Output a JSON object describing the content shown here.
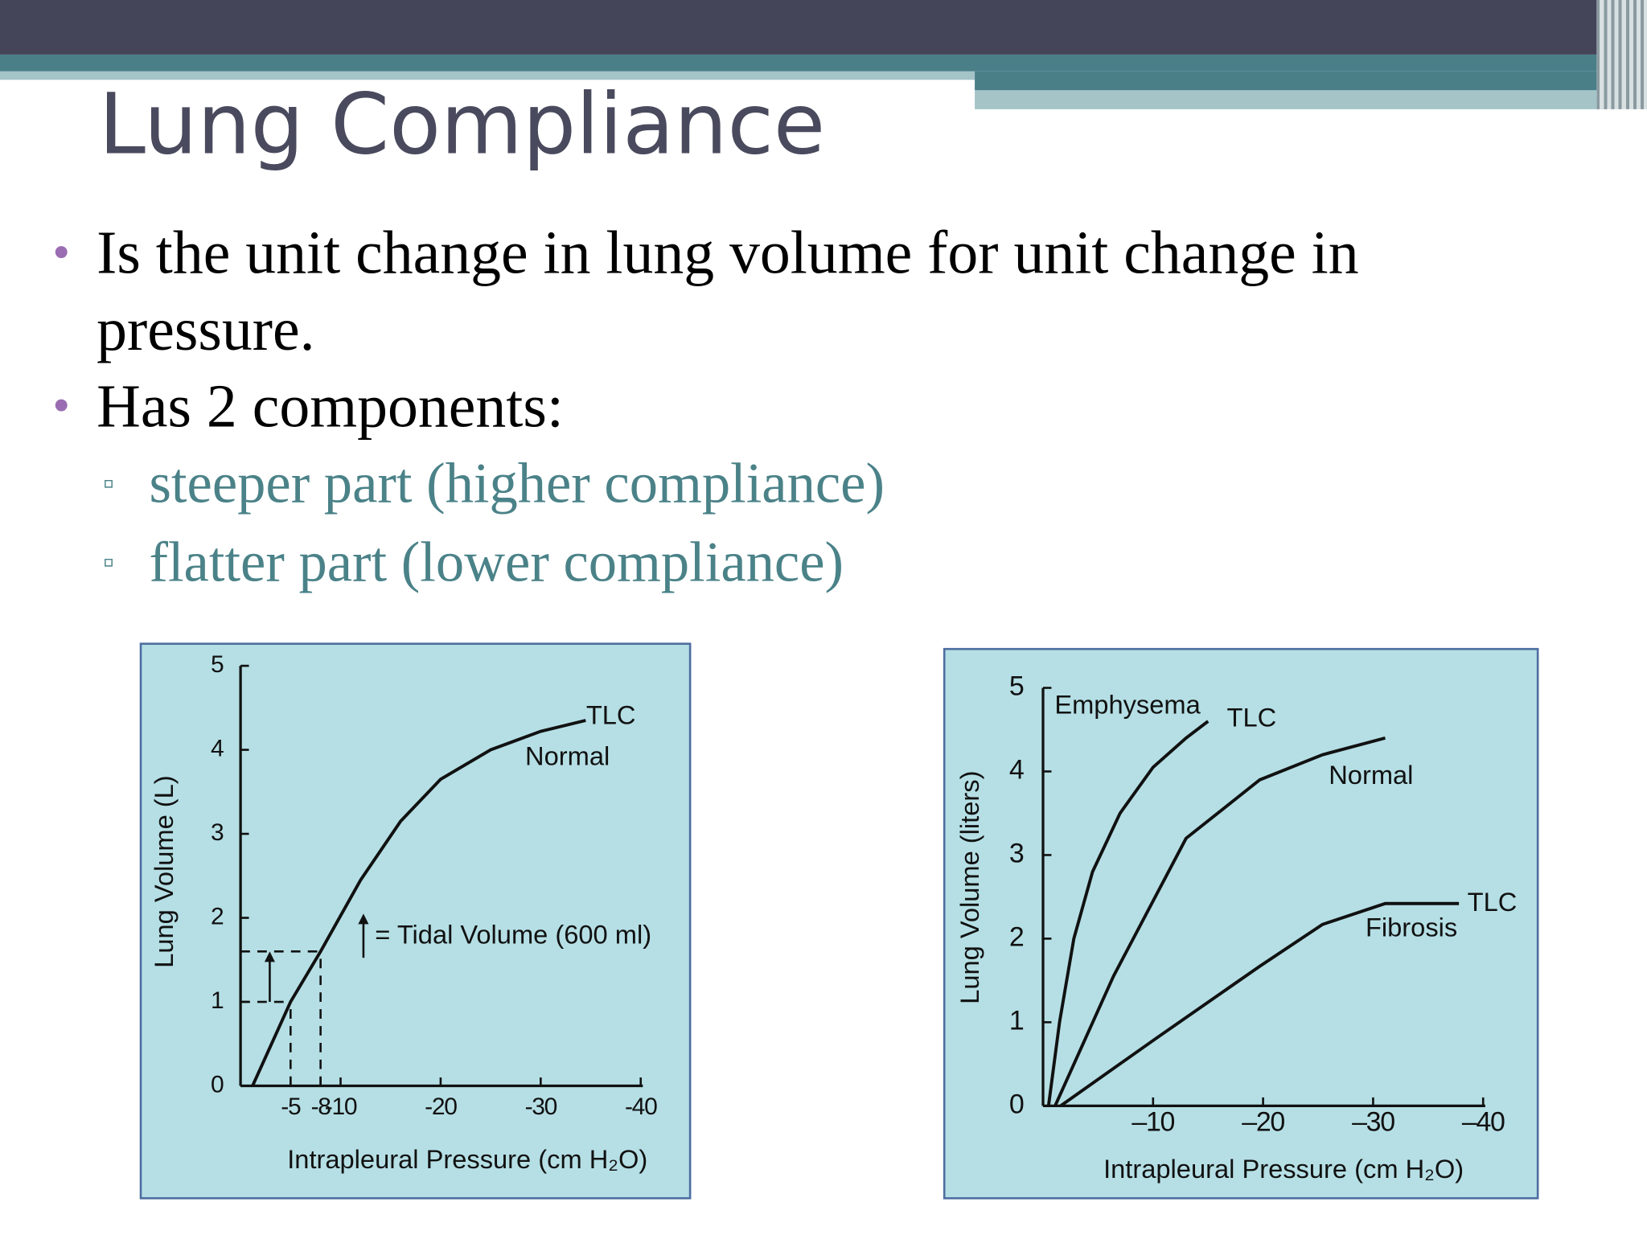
{
  "slide": {
    "title": "Lung Compliance",
    "bullets": [
      {
        "text": "Is the unit change in lung volume for unit change in pressure."
      },
      {
        "text": "Has 2 components:",
        "sub_bullets": [
          "steeper part (higher compliance)",
          "flatter part (lower compliance)"
        ]
      }
    ]
  },
  "chart_data": [
    {
      "type": "line",
      "xlabel": "Intrapleural Pressure (cm H₂O)",
      "ylabel": "Lung Volume (L)",
      "xlim": [
        0,
        -40
      ],
      "ylim": [
        0,
        5
      ],
      "xticks": [
        -5,
        -8,
        -10,
        -20,
        -30,
        -40
      ],
      "yticks": [
        0,
        1,
        2,
        3,
        4,
        5
      ],
      "series": [
        {
          "name": "Normal",
          "color": "#111111",
          "x": [
            -1.2,
            -5,
            -8,
            -12,
            -16,
            -20,
            -25,
            -30,
            -34.5
          ],
          "values": [
            0,
            1.0,
            1.6,
            2.45,
            3.15,
            3.65,
            4.0,
            4.22,
            4.35
          ]
        }
      ],
      "annotations": [
        "TLC",
        "= Tidal Volume (600 ml)"
      ]
    },
    {
      "type": "line",
      "xlabel": "Intrapleural Pressure (cm H₂O)",
      "ylabel": "Lung Volume (liters)",
      "xlim": [
        0,
        -40
      ],
      "ylim": [
        0,
        5
      ],
      "xticks": [
        {
          "value": -10,
          "label": "–10"
        },
        {
          "value": -20,
          "label": "–20"
        },
        {
          "value": -30,
          "label": "–30"
        },
        {
          "value": -40,
          "label": "–40"
        }
      ],
      "yticks": [
        0,
        1,
        2,
        3,
        4,
        5
      ],
      "series": [
        {
          "name": "Emphysema",
          "color": "#111111",
          "x": [
            -0.5,
            -1.5,
            -2.8,
            -4.5,
            -7,
            -10,
            -13,
            -15
          ],
          "values": [
            0,
            1.0,
            2.0,
            2.8,
            3.5,
            4.05,
            4.4,
            4.6
          ]
        },
        {
          "name": "Normal",
          "color": "#111111",
          "x": [
            -1.1,
            -6.4,
            -13,
            -19.7,
            -25.4,
            -31.1
          ],
          "values": [
            0,
            1.55,
            3.2,
            3.9,
            4.2,
            4.4
          ]
        },
        {
          "name": "Fibrosis",
          "color": "#111111",
          "x": [
            -1.6,
            -10.2,
            -19.7,
            -25.4,
            -31.1,
            -37.8
          ],
          "values": [
            0,
            0.8,
            1.67,
            2.17,
            2.42,
            2.42
          ]
        }
      ],
      "annotations": [
        "TLC",
        "TLC"
      ]
    }
  ]
}
